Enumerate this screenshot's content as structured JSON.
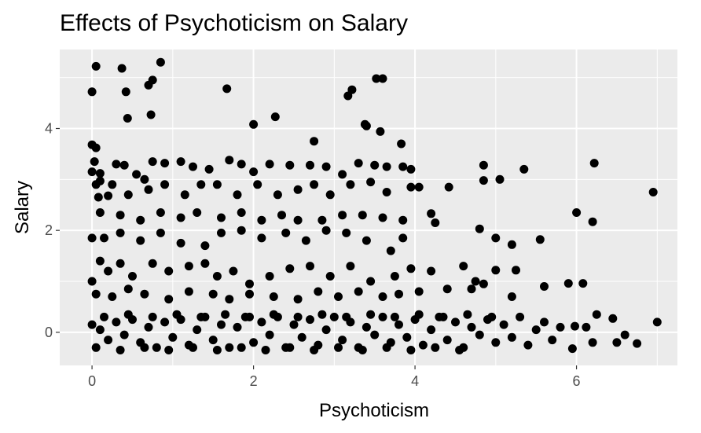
{
  "chart_data": {
    "type": "scatter",
    "title": "Effects of Psychoticism on Salary",
    "xlabel": "Psychoticism",
    "ylabel": "Salary",
    "xlim": [
      -0.4,
      7.25
    ],
    "ylim": [
      -0.65,
      5.55
    ],
    "xticks": [
      0,
      2,
      4,
      6
    ],
    "yticks": [
      0,
      2,
      4
    ],
    "grid": true,
    "legend": "none",
    "points": [
      [
        0.05,
        5.22
      ],
      [
        0.37,
        5.18
      ],
      [
        0.85,
        5.3
      ],
      [
        0.0,
        4.72
      ],
      [
        0.42,
        4.72
      ],
      [
        0.7,
        4.85
      ],
      [
        0.75,
        4.95
      ],
      [
        0.44,
        4.2
      ],
      [
        0.73,
        4.27
      ],
      [
        1.67,
        4.78
      ],
      [
        2.0,
        4.08
      ],
      [
        2.27,
        4.23
      ],
      [
        3.17,
        4.64
      ],
      [
        3.22,
        4.76
      ],
      [
        3.52,
        4.98
      ],
      [
        3.6,
        4.98
      ],
      [
        3.38,
        4.08
      ],
      [
        3.4,
        4.05
      ],
      [
        3.57,
        3.94
      ],
      [
        2.75,
        3.75
      ],
      [
        3.83,
        3.7
      ],
      [
        6.22,
        3.32
      ],
      [
        6.95,
        2.75
      ],
      [
        5.35,
        3.2
      ],
      [
        6.0,
        2.35
      ],
      [
        6.2,
        2.17
      ],
      [
        5.55,
        1.82
      ],
      [
        5.0,
        1.85
      ],
      [
        5.2,
        1.72
      ],
      [
        4.85,
        3.28
      ],
      [
        4.85,
        2.98
      ],
      [
        5.05,
        3.0
      ],
      [
        4.42,
        2.85
      ],
      [
        4.8,
        2.03
      ],
      [
        4.2,
        2.33
      ],
      [
        4.25,
        2.15
      ],
      [
        5.0,
        1.22
      ],
      [
        5.25,
        1.22
      ],
      [
        5.9,
        0.96
      ],
      [
        6.08,
        0.96
      ],
      [
        5.6,
        0.9
      ],
      [
        5.2,
        0.7
      ],
      [
        4.85,
        0.95
      ],
      [
        4.6,
        1.3
      ],
      [
        4.75,
        1.0
      ],
      [
        4.4,
        0.85
      ],
      [
        4.7,
        0.85
      ],
      [
        7.0,
        0.2
      ],
      [
        6.75,
        -0.22
      ],
      [
        6.6,
        -0.05
      ],
      [
        6.5,
        -0.2
      ],
      [
        6.45,
        0.27
      ],
      [
        6.25,
        0.35
      ],
      [
        6.2,
        -0.2
      ],
      [
        5.95,
        -0.32
      ],
      [
        5.98,
        0.12
      ],
      [
        6.12,
        0.1
      ],
      [
        0.0,
        3.68
      ],
      [
        0.05,
        3.62
      ],
      [
        0.03,
        3.35
      ],
      [
        0.0,
        3.15
      ],
      [
        0.1,
        3.12
      ],
      [
        0.05,
        2.9
      ],
      [
        0.1,
        2.97
      ],
      [
        0.08,
        2.65
      ],
      [
        0.2,
        2.68
      ],
      [
        0.3,
        3.3
      ],
      [
        0.4,
        3.28
      ],
      [
        0.55,
        3.1
      ],
      [
        0.65,
        3.0
      ],
      [
        0.75,
        3.35
      ],
      [
        0.9,
        3.32
      ],
      [
        1.1,
        3.35
      ],
      [
        1.25,
        3.25
      ],
      [
        1.45,
        3.2
      ],
      [
        1.7,
        3.38
      ],
      [
        1.85,
        3.3
      ],
      [
        2.0,
        3.15
      ],
      [
        2.2,
        3.3
      ],
      [
        2.45,
        3.28
      ],
      [
        2.7,
        3.28
      ],
      [
        2.9,
        3.25
      ],
      [
        3.1,
        3.1
      ],
      [
        3.3,
        3.32
      ],
      [
        3.5,
        3.28
      ],
      [
        3.65,
        3.25
      ],
      [
        3.85,
        3.25
      ],
      [
        3.95,
        3.2
      ],
      [
        0.25,
        2.9
      ],
      [
        0.45,
        2.7
      ],
      [
        0.7,
        2.8
      ],
      [
        0.9,
        2.9
      ],
      [
        1.15,
        2.7
      ],
      [
        1.35,
        2.9
      ],
      [
        1.55,
        2.9
      ],
      [
        1.8,
        2.7
      ],
      [
        2.05,
        2.9
      ],
      [
        2.3,
        2.7
      ],
      [
        2.55,
        2.8
      ],
      [
        2.75,
        2.9
      ],
      [
        2.95,
        2.7
      ],
      [
        3.2,
        2.9
      ],
      [
        3.45,
        2.95
      ],
      [
        3.65,
        2.75
      ],
      [
        3.95,
        2.85
      ],
      [
        4.05,
        2.85
      ],
      [
        0.1,
        2.35
      ],
      [
        0.35,
        2.3
      ],
      [
        0.6,
        2.2
      ],
      [
        0.85,
        2.35
      ],
      [
        1.1,
        2.25
      ],
      [
        1.3,
        2.35
      ],
      [
        1.6,
        2.25
      ],
      [
        1.85,
        2.35
      ],
      [
        2.1,
        2.2
      ],
      [
        2.35,
        2.3
      ],
      [
        2.55,
        2.2
      ],
      [
        2.85,
        2.2
      ],
      [
        3.1,
        2.3
      ],
      [
        3.35,
        2.3
      ],
      [
        3.6,
        2.25
      ],
      [
        3.85,
        2.2
      ],
      [
        0.0,
        1.85
      ],
      [
        0.15,
        1.85
      ],
      [
        0.35,
        1.95
      ],
      [
        0.6,
        1.8
      ],
      [
        0.85,
        1.95
      ],
      [
        1.1,
        1.75
      ],
      [
        1.4,
        1.7
      ],
      [
        1.6,
        1.95
      ],
      [
        1.85,
        2.0
      ],
      [
        2.1,
        1.85
      ],
      [
        2.4,
        1.95
      ],
      [
        2.65,
        1.8
      ],
      [
        2.9,
        2.0
      ],
      [
        3.15,
        1.95
      ],
      [
        3.4,
        1.8
      ],
      [
        3.7,
        1.6
      ],
      [
        3.85,
        1.85
      ],
      [
        0.0,
        1.0
      ],
      [
        0.1,
        1.4
      ],
      [
        0.2,
        1.2
      ],
      [
        0.35,
        1.35
      ],
      [
        0.5,
        1.1
      ],
      [
        0.75,
        1.35
      ],
      [
        0.95,
        1.2
      ],
      [
        1.2,
        1.3
      ],
      [
        1.4,
        1.35
      ],
      [
        1.55,
        1.1
      ],
      [
        1.75,
        1.2
      ],
      [
        1.95,
        0.95
      ],
      [
        2.2,
        1.1
      ],
      [
        2.45,
        1.25
      ],
      [
        2.7,
        1.3
      ],
      [
        2.95,
        1.1
      ],
      [
        3.2,
        1.3
      ],
      [
        3.45,
        1.0
      ],
      [
        3.75,
        1.1
      ],
      [
        3.95,
        1.25
      ],
      [
        4.2,
        1.2
      ],
      [
        0.05,
        0.75
      ],
      [
        0.25,
        0.7
      ],
      [
        0.45,
        0.85
      ],
      [
        0.65,
        0.75
      ],
      [
        0.95,
        0.65
      ],
      [
        1.2,
        0.8
      ],
      [
        1.5,
        0.75
      ],
      [
        1.7,
        0.65
      ],
      [
        1.95,
        0.75
      ],
      [
        2.25,
        0.7
      ],
      [
        2.55,
        0.65
      ],
      [
        2.8,
        0.8
      ],
      [
        3.05,
        0.7
      ],
      [
        3.3,
        0.8
      ],
      [
        3.6,
        0.7
      ],
      [
        3.8,
        0.75
      ],
      [
        4.05,
        0.8
      ],
      [
        0.0,
        0.15
      ],
      [
        0.1,
        0.05
      ],
      [
        0.2,
        -0.15
      ],
      [
        0.3,
        0.2
      ],
      [
        0.4,
        -0.05
      ],
      [
        0.5,
        0.25
      ],
      [
        0.6,
        -0.2
      ],
      [
        0.7,
        0.1
      ],
      [
        0.8,
        -0.3
      ],
      [
        0.9,
        0.2
      ],
      [
        1.0,
        -0.1
      ],
      [
        1.1,
        0.25
      ],
      [
        1.2,
        -0.25
      ],
      [
        1.3,
        0.05
      ],
      [
        1.4,
        0.3
      ],
      [
        1.5,
        -0.15
      ],
      [
        1.6,
        0.15
      ],
      [
        1.7,
        -0.3
      ],
      [
        1.8,
        0.1
      ],
      [
        1.9,
        0.3
      ],
      [
        2.0,
        -0.2
      ],
      [
        2.1,
        0.2
      ],
      [
        2.2,
        -0.05
      ],
      [
        2.3,
        0.3
      ],
      [
        2.4,
        -0.3
      ],
      [
        2.5,
        0.15
      ],
      [
        2.6,
        -0.1
      ],
      [
        2.7,
        0.25
      ],
      [
        2.8,
        -0.25
      ],
      [
        2.9,
        0.05
      ],
      [
        3.0,
        0.3
      ],
      [
        3.1,
        -0.15
      ],
      [
        3.2,
        0.2
      ],
      [
        3.3,
        -0.3
      ],
      [
        3.4,
        0.1
      ],
      [
        3.5,
        -0.05
      ],
      [
        3.6,
        0.3
      ],
      [
        3.7,
        -0.2
      ],
      [
        3.8,
        0.15
      ],
      [
        3.9,
        -0.1
      ],
      [
        4.0,
        0.25
      ],
      [
        4.1,
        -0.25
      ],
      [
        4.2,
        0.05
      ],
      [
        4.3,
        0.3
      ],
      [
        4.4,
        -0.15
      ],
      [
        4.5,
        0.2
      ],
      [
        4.6,
        -0.3
      ],
      [
        4.7,
        0.1
      ],
      [
        4.8,
        -0.05
      ],
      [
        4.9,
        0.25
      ],
      [
        5.0,
        -0.2
      ],
      [
        5.1,
        0.15
      ],
      [
        5.2,
        -0.1
      ],
      [
        5.3,
        0.3
      ],
      [
        5.4,
        -0.25
      ],
      [
        5.5,
        0.05
      ],
      [
        5.6,
        0.2
      ],
      [
        5.7,
        -0.15
      ],
      [
        5.8,
        0.1
      ],
      [
        0.05,
        -0.3
      ],
      [
        0.35,
        -0.35
      ],
      [
        0.65,
        -0.3
      ],
      [
        0.95,
        -0.35
      ],
      [
        1.25,
        -0.3
      ],
      [
        1.55,
        -0.35
      ],
      [
        1.85,
        -0.3
      ],
      [
        2.15,
        -0.35
      ],
      [
        2.45,
        -0.3
      ],
      [
        2.75,
        -0.35
      ],
      [
        3.05,
        -0.3
      ],
      [
        3.35,
        -0.35
      ],
      [
        3.65,
        -0.3
      ],
      [
        3.95,
        -0.35
      ],
      [
        4.25,
        -0.3
      ],
      [
        4.55,
        -0.35
      ],
      [
        0.15,
        0.3
      ],
      [
        0.45,
        0.35
      ],
      [
        0.75,
        0.3
      ],
      [
        1.05,
        0.35
      ],
      [
        1.35,
        0.3
      ],
      [
        1.65,
        0.35
      ],
      [
        1.95,
        0.3
      ],
      [
        2.25,
        0.35
      ],
      [
        2.55,
        0.3
      ],
      [
        2.85,
        0.35
      ],
      [
        3.15,
        0.3
      ],
      [
        3.45,
        0.35
      ],
      [
        3.75,
        0.3
      ],
      [
        4.05,
        0.35
      ],
      [
        4.35,
        0.3
      ],
      [
        4.65,
        0.35
      ],
      [
        4.95,
        0.3
      ]
    ]
  }
}
